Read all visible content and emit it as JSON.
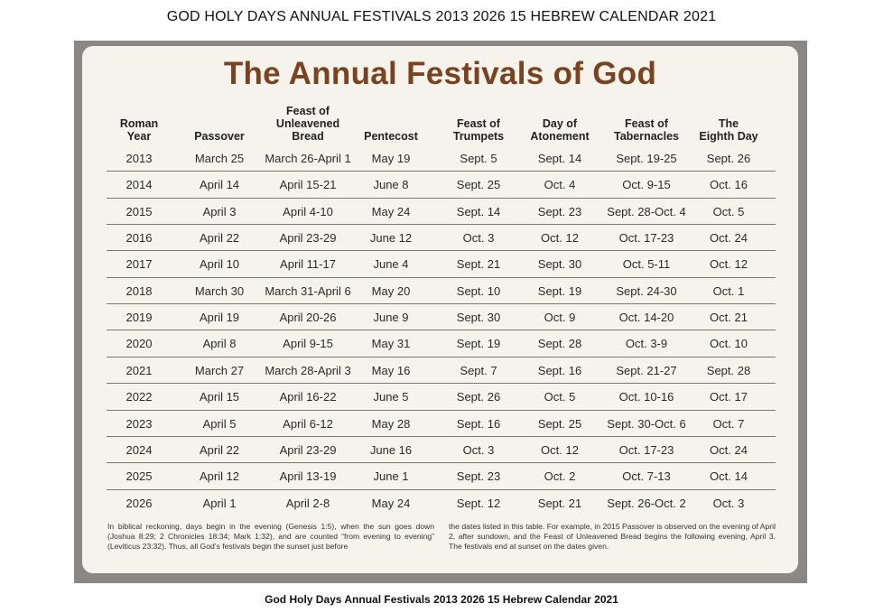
{
  "page": {
    "title": "GOD HOLY DAYS ANNUAL FESTIVALS 2013 2026 15 HEBREW CALENDAR 2021",
    "caption": "God Holy Days Annual Festivals 2013 2026 15 Hebrew Calendar 2021"
  },
  "card": {
    "title": "The Annual Festivals of God"
  },
  "table": {
    "headers": [
      [
        "Roman",
        "Year"
      ],
      [
        "Passover"
      ],
      [
        "Feast of",
        "Unleavened",
        "Bread"
      ],
      [
        "Pentecost"
      ],
      [
        "Feast of",
        "Trumpets"
      ],
      [
        "Day of",
        "Atonement"
      ],
      [
        "Feast of",
        "Tabernacles"
      ],
      [
        "The",
        "Eighth Day"
      ]
    ],
    "rows": [
      [
        "2013",
        "March 25",
        "March 26-April 1",
        "May 19",
        "Sept. 5",
        "Sept. 14",
        "Sept. 19-25",
        "Sept. 26"
      ],
      [
        "2014",
        "April 14",
        "April 15-21",
        "June 8",
        "Sept. 25",
        "Oct. 4",
        "Oct. 9-15",
        "Oct. 16"
      ],
      [
        "2015",
        "April 3",
        "April 4-10",
        "May 24",
        "Sept. 14",
        "Sept. 23",
        "Sept. 28-Oct. 4",
        "Oct. 5"
      ],
      [
        "2016",
        "April 22",
        "April 23-29",
        "June 12",
        "Oct. 3",
        "Oct. 12",
        "Oct. 17-23",
        "Oct. 24"
      ],
      [
        "2017",
        "April 10",
        "April 11-17",
        "June 4",
        "Sept. 21",
        "Sept. 30",
        "Oct. 5-11",
        "Oct. 12"
      ],
      [
        "2018",
        "March 30",
        "March 31-April 6",
        "May 20",
        "Sept. 10",
        "Sept. 19",
        "Sept. 24-30",
        "Oct. 1"
      ],
      [
        "2019",
        "April 19",
        "April 20-26",
        "June 9",
        "Sept. 30",
        "Oct. 9",
        "Oct. 14-20",
        "Oct. 21"
      ],
      [
        "2020",
        "April 8",
        "April 9-15",
        "May 31",
        "Sept. 19",
        "Sept. 28",
        "Oct. 3-9",
        "Oct. 10"
      ],
      [
        "2021",
        "March 27",
        "March 28-April 3",
        "May 16",
        "Sept. 7",
        "Sept. 16",
        "Sept. 21-27",
        "Sept. 28"
      ],
      [
        "2022",
        "April 15",
        "April 16-22",
        "June 5",
        "Sept. 26",
        "Oct. 5",
        "Oct. 10-16",
        "Oct. 17"
      ],
      [
        "2023",
        "April 5",
        "April 6-12",
        "May 28",
        "Sept. 16",
        "Sept. 25",
        "Sept. 30-Oct. 6",
        "Oct. 7"
      ],
      [
        "2024",
        "April 22",
        "April 23-29",
        "June 16",
        "Oct. 3",
        "Oct. 12",
        "Oct. 17-23",
        "Oct. 24"
      ],
      [
        "2025",
        "April 12",
        "April 13-19",
        "June 1",
        "Sept. 23",
        "Oct. 2",
        "Oct. 7-13",
        "Oct. 14"
      ],
      [
        "2026",
        "April 1",
        "April 2-8",
        "May 24",
        "Sept. 12",
        "Sept. 21",
        "Sept. 26-Oct. 2",
        "Oct. 3"
      ]
    ]
  },
  "footnote": {
    "left": "In biblical reckoning, days begin in the evening (Genesis 1:5), when the sun goes down (Joshua 8:29; 2 Chronicles 18:34; Mark 1:32), and are counted “from evening to evening” (Leviticus 23:32). Thus, all God’s festivals begin the sunset just before",
    "right": "the dates listed in this table. For example, in 2015 Passover is observed on the evening of April 2, after sundown, and the Feast of Unleavened Bread begins the following evening, April 3. The festivals end at sunset on the dates given."
  }
}
